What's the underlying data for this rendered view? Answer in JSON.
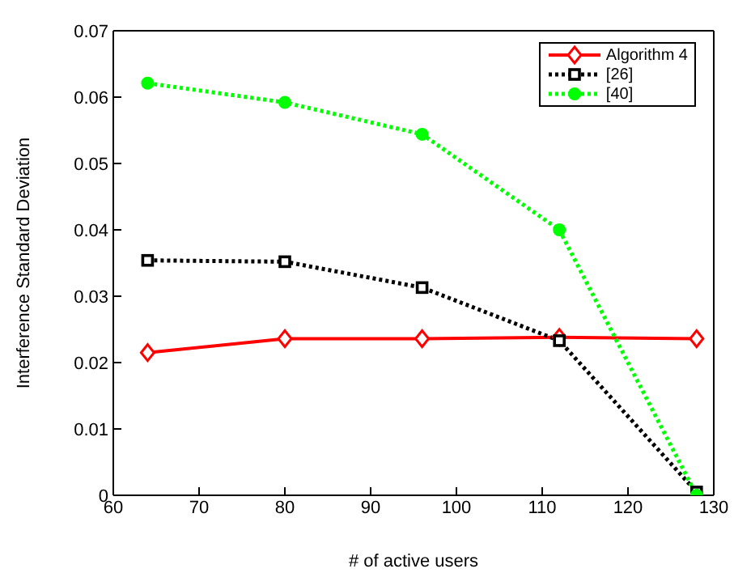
{
  "chart_data": {
    "type": "line",
    "xlabel": "# of active users",
    "ylabel": "Interference Standard Deviation",
    "x": [
      64,
      80,
      96,
      112,
      128
    ],
    "series": [
      {
        "name": "Algorithm 4",
        "color": "#ff0000",
        "marker": "diamond",
        "line_style": "solid",
        "values": [
          0.0215,
          0.0236,
          0.0236,
          0.0238,
          0.0236
        ]
      },
      {
        "name": "[26]",
        "color": "#000000",
        "marker": "square",
        "line_style": "dotted",
        "values": [
          0.0354,
          0.0352,
          0.0313,
          0.0233,
          0.0005
        ]
      },
      {
        "name": "[40]",
        "color": "#00ff00",
        "marker": "circle",
        "line_style": "dotted",
        "values": [
          0.0621,
          0.0592,
          0.0544,
          0.04,
          0
        ]
      }
    ],
    "xlim": [
      60,
      130
    ],
    "xticks": [
      60,
      70,
      80,
      90,
      100,
      110,
      120,
      130
    ],
    "ylim": [
      0,
      0.07
    ],
    "yticks": [
      0,
      0.01,
      0.02,
      0.03,
      0.04,
      0.05,
      0.06,
      0.07
    ],
    "grid": false,
    "legend": "top right"
  }
}
